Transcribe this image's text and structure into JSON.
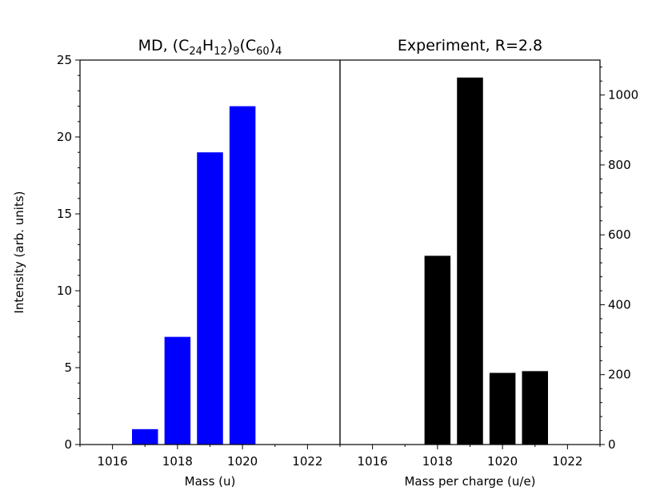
{
  "chart_data": [
    {
      "type": "bar",
      "title": "MD, (C24H12)9(C60)4",
      "title_parts": [
        {
          "t": "MD, (C",
          "sub": false
        },
        {
          "t": "24",
          "sub": true
        },
        {
          "t": "H",
          "sub": false
        },
        {
          "t": "12",
          "sub": true
        },
        {
          "t": ")",
          "sub": false
        },
        {
          "t": "9",
          "sub": true
        },
        {
          "t": "(C",
          "sub": false
        },
        {
          "t": "60",
          "sub": true
        },
        {
          "t": ")",
          "sub": false
        },
        {
          "t": "4",
          "sub": true
        }
      ],
      "xlabel": "Mass (u)",
      "ylabel": "Intensity (arb. units)",
      "x": [
        1017,
        1018,
        1019,
        1020
      ],
      "values": [
        1,
        7,
        19,
        22
      ],
      "bar_width": 0.8,
      "bar_color": "#0000ff",
      "xlim": [
        1015,
        1023
      ],
      "ylim": [
        0,
        25
      ],
      "xticks": [
        1016,
        1018,
        1020,
        1022
      ],
      "yticks": [
        0,
        5,
        10,
        15,
        20,
        25
      ],
      "y_axis_side": "left",
      "grid": false
    },
    {
      "type": "bar",
      "title": "Experiment, R=2.8",
      "xlabel": "Mass per charge (u/e)",
      "x": [
        1018,
        1019,
        1020,
        1021
      ],
      "values": [
        540,
        1050,
        205,
        210
      ],
      "bar_width": 0.8,
      "bar_color": "#000000",
      "xlim": [
        1015,
        1023
      ],
      "ylim": [
        0,
        1100
      ],
      "xticks": [
        1016,
        1018,
        1020,
        1022
      ],
      "yticks": [
        0,
        200,
        400,
        600,
        800,
        1000
      ],
      "y_axis_side": "right",
      "grid": false
    }
  ]
}
